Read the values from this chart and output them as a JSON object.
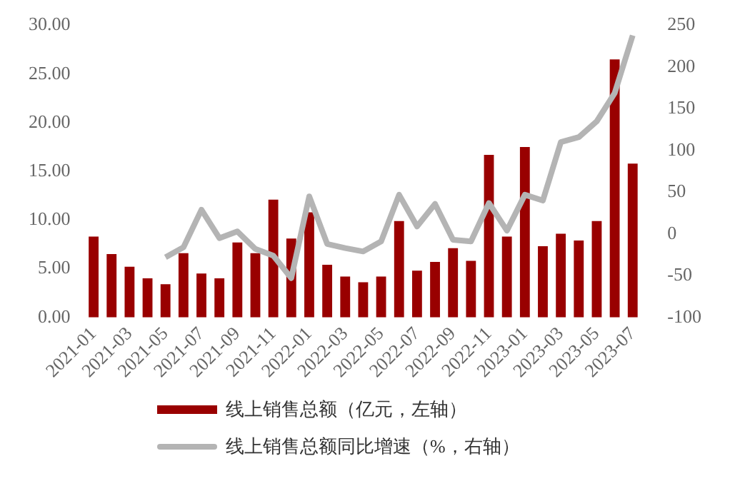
{
  "chart_data": {
    "type": "bar",
    "categories": [
      "2021-01",
      null,
      "2021-03",
      null,
      "2021-05",
      null,
      "2021-07",
      null,
      "2021-09",
      null,
      "2021-11",
      null,
      "2022-01",
      null,
      "2022-03",
      null,
      "2022-05",
      null,
      "2022-07",
      null,
      "2022-09",
      null,
      "2022-11",
      null,
      "2023-01",
      null,
      "2023-03",
      null,
      "2023-05",
      null,
      "2023-07"
    ],
    "series": [
      {
        "name": "线上销售总额（亿元，左轴）",
        "color": "#990000",
        "values": [
          8.3,
          6.5,
          5.2,
          4.0,
          3.4,
          6.6,
          4.5,
          4.0,
          7.7,
          6.6,
          12.1,
          8.1,
          10.8,
          5.4,
          4.2,
          3.6,
          4.2,
          9.9,
          4.8,
          5.7,
          7.1,
          5.8,
          16.7,
          8.3,
          17.5,
          7.3,
          8.6,
          7.9,
          9.9,
          26.5,
          15.8
        ]
      },
      {
        "name": "线上销售总额同比增速（%，右轴）",
        "type": "line",
        "axis": "y2",
        "color": "#b4b4b4",
        "values": [
          null,
          null,
          null,
          null,
          -28,
          -16,
          29,
          -5,
          3,
          -18,
          -26,
          -53,
          45,
          -12,
          -17,
          -21,
          -9,
          47,
          9,
          36,
          -7,
          -9,
          37,
          4,
          47,
          40,
          110,
          116,
          135,
          169,
          238
        ]
      }
    ],
    "ylim": [
      0,
      30
    ],
    "yticks": [
      {
        "value": 0,
        "label": "0.00"
      },
      {
        "value": 5,
        "label": "5.00"
      },
      {
        "value": 10,
        "label": "10.00"
      },
      {
        "value": 15,
        "label": "15.00"
      },
      {
        "value": 20,
        "label": "20.00"
      },
      {
        "value": 25,
        "label": "25.00"
      },
      {
        "value": 30,
        "label": "30.00"
      }
    ],
    "y2lim": [
      -100,
      250
    ],
    "y2ticks": [
      -100,
      -50,
      0,
      50,
      100,
      150,
      200,
      250
    ],
    "grid": false,
    "legend": "bottom"
  }
}
